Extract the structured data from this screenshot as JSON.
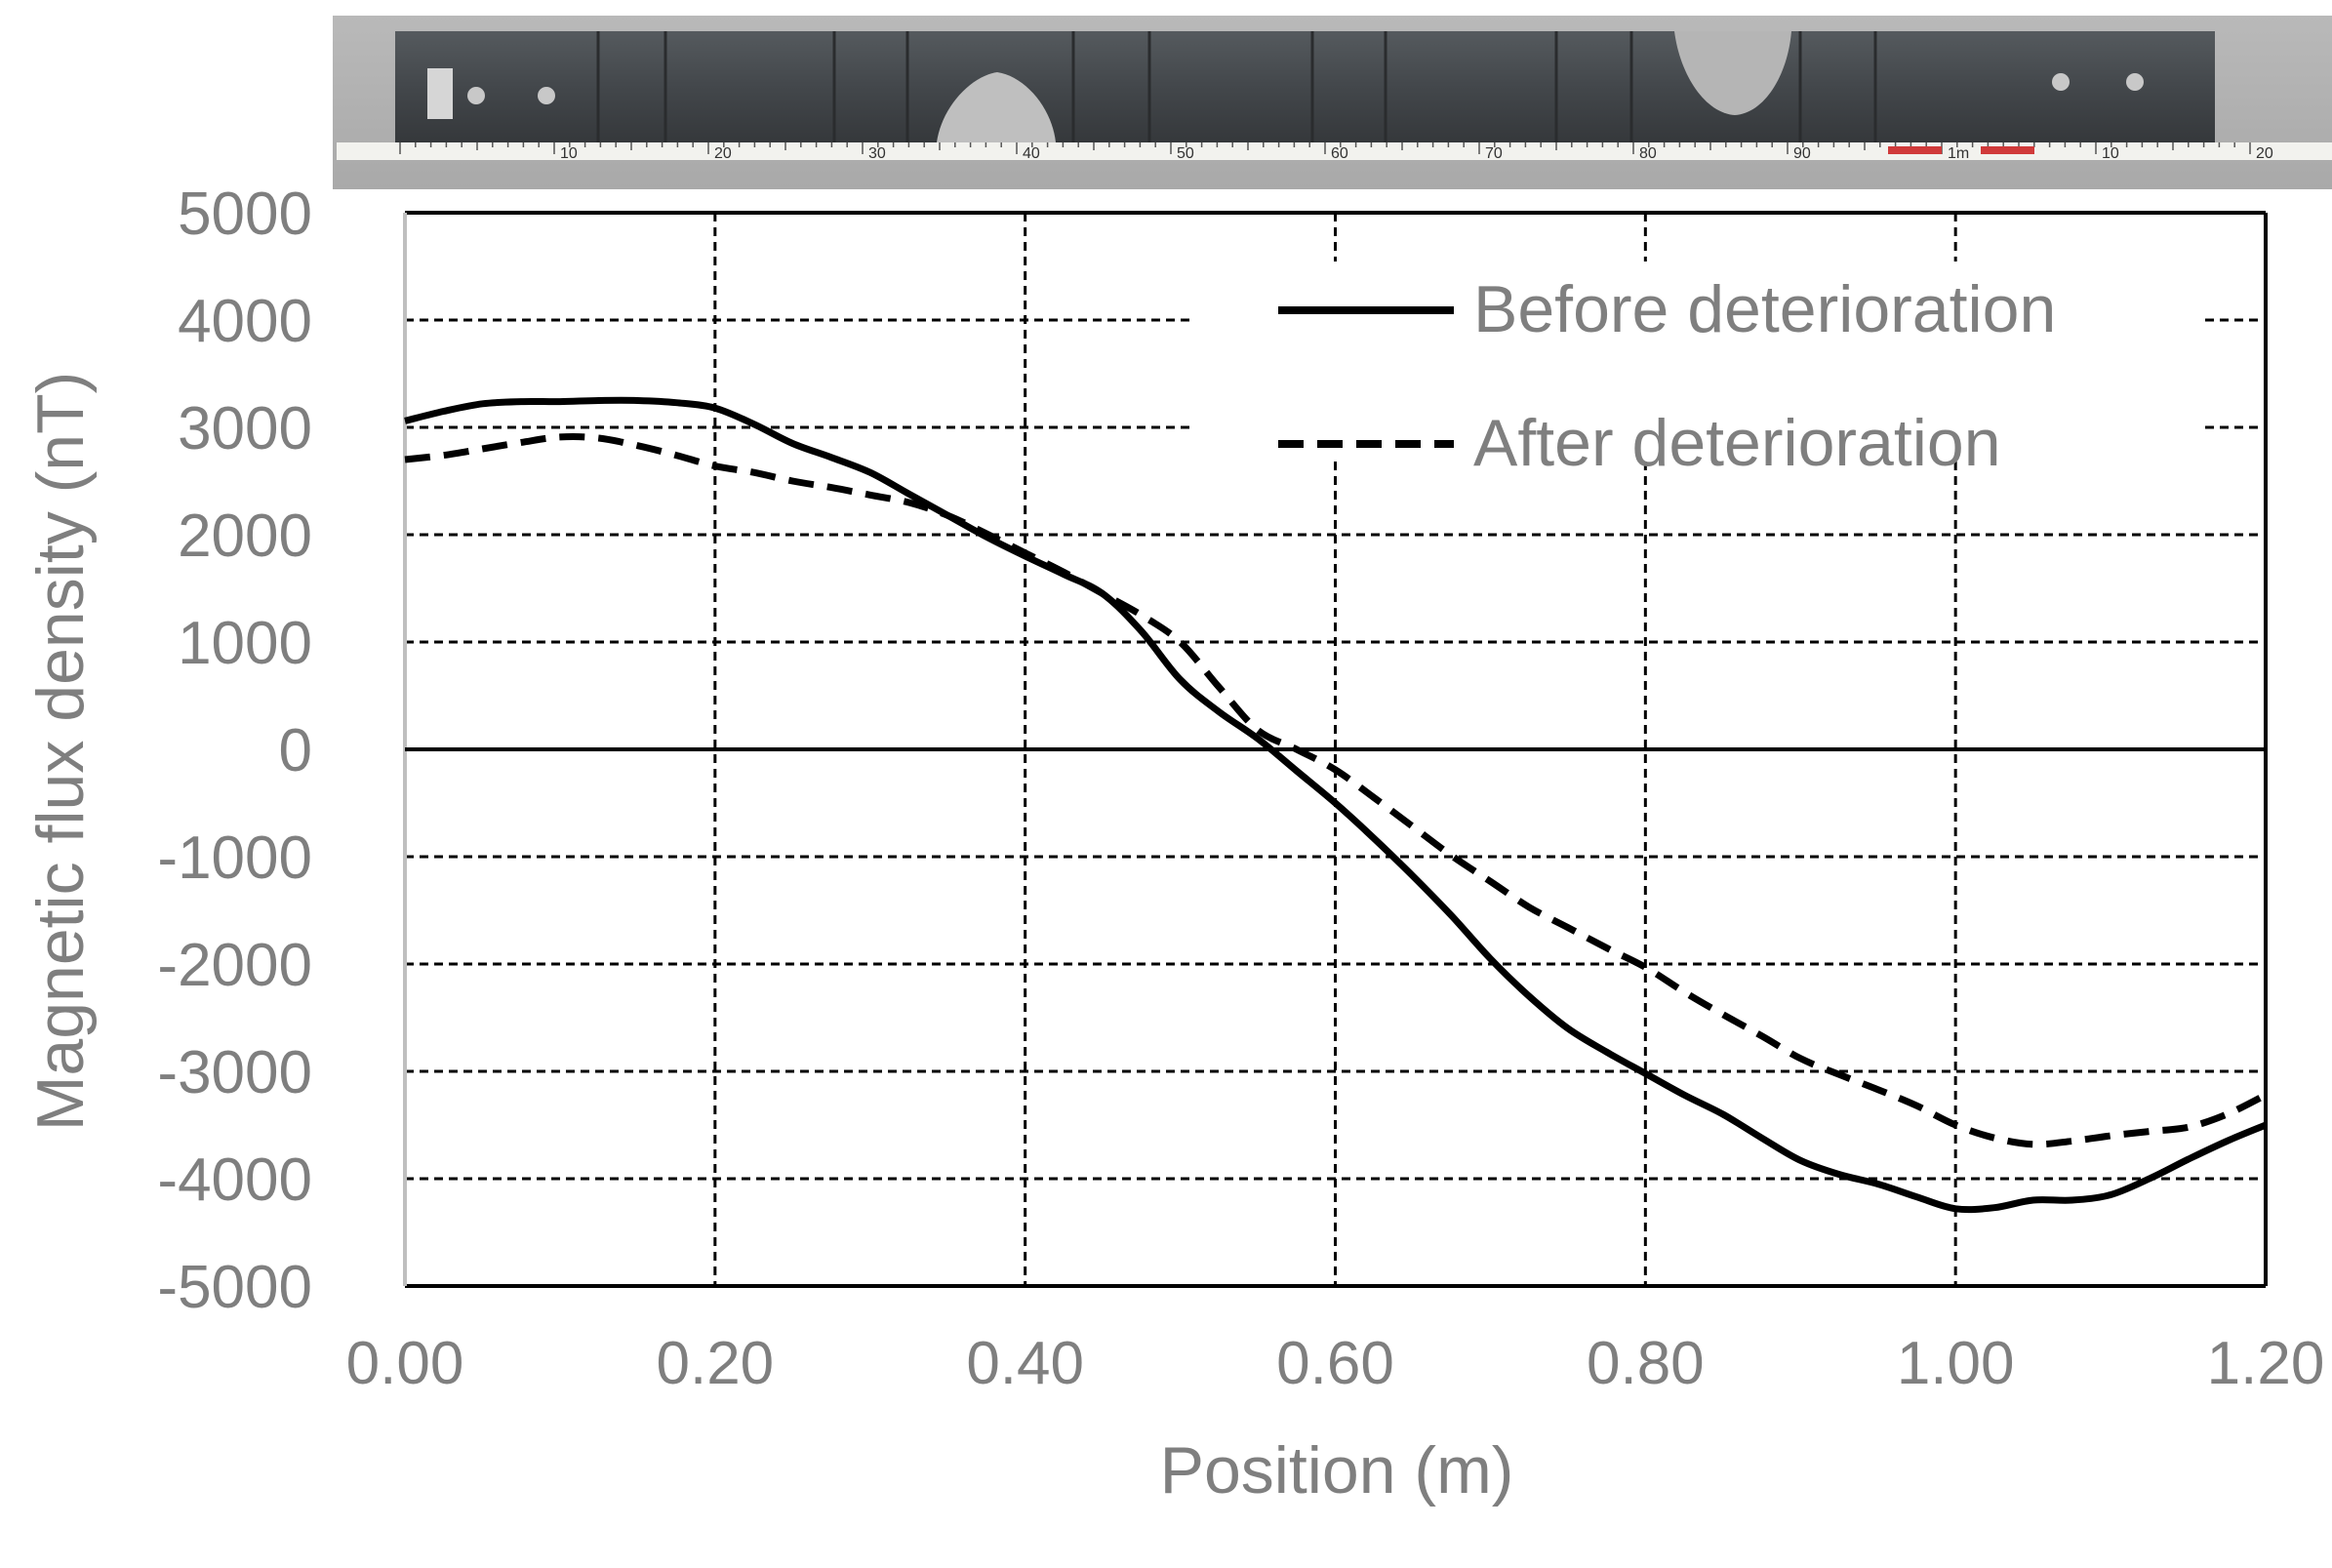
{
  "photo": {
    "description_icon": "steel-plate-specimen-photo",
    "ruler_labels": [
      "10",
      "20",
      "30",
      "40",
      "50",
      "60",
      "70",
      "80",
      "90",
      "1m",
      "10",
      "20"
    ]
  },
  "chart_data": {
    "type": "line",
    "title": "",
    "xlabel": "Position (m)",
    "ylabel": "Magnetic flux density (nT)",
    "xlim": [
      0.0,
      1.2
    ],
    "ylim": [
      -5000,
      5000
    ],
    "x_ticks": [
      0.0,
      0.2,
      0.4,
      0.6,
      0.8,
      1.0,
      1.2
    ],
    "x_tick_labels": [
      "0.00",
      "0.20",
      "0.40",
      "0.60",
      "0.80",
      "1.00",
      "1.20"
    ],
    "y_ticks": [
      5000,
      4000,
      3000,
      2000,
      1000,
      0,
      -1000,
      -2000,
      -3000,
      -4000,
      -5000
    ],
    "y_tick_labels": [
      "5000",
      "4000",
      "3000",
      "2000",
      "1000",
      "0",
      "-1000",
      "-2000",
      "-3000",
      "-4000",
      "-5000"
    ],
    "grid": true,
    "legend_position": "top-right",
    "series": [
      {
        "name": "Before deterioration",
        "style": "solid",
        "color": "#000000",
        "x": [
          0.0,
          0.025,
          0.05,
          0.075,
          0.1,
          0.125,
          0.15,
          0.175,
          0.2,
          0.225,
          0.25,
          0.275,
          0.3,
          0.325,
          0.35,
          0.375,
          0.4,
          0.425,
          0.45,
          0.475,
          0.5,
          0.525,
          0.55,
          0.575,
          0.6,
          0.625,
          0.65,
          0.675,
          0.7,
          0.725,
          0.75,
          0.775,
          0.8,
          0.825,
          0.85,
          0.875,
          0.9,
          0.925,
          0.95,
          0.975,
          1.0,
          1.025,
          1.05,
          1.075,
          1.1,
          1.125,
          1.15,
          1.175,
          1.2
        ],
        "y": [
          3060,
          3150,
          3220,
          3240,
          3240,
          3250,
          3250,
          3230,
          3180,
          3030,
          2850,
          2720,
          2580,
          2380,
          2180,
          1980,
          1800,
          1630,
          1450,
          1100,
          650,
          350,
          100,
          -200,
          -500,
          -830,
          -1180,
          -1550,
          -1950,
          -2300,
          -2600,
          -2820,
          -3020,
          -3220,
          -3400,
          -3620,
          -3830,
          -3960,
          -4050,
          -4170,
          -4280,
          -4270,
          -4200,
          -4200,
          -4150,
          -4000,
          -3820,
          -3650,
          -3500
        ]
      },
      {
        "name": "After deterioration",
        "style": "dashed",
        "color": "#000000",
        "x": [
          0.0,
          0.025,
          0.05,
          0.075,
          0.1,
          0.125,
          0.15,
          0.175,
          0.2,
          0.225,
          0.25,
          0.275,
          0.3,
          0.325,
          0.35,
          0.375,
          0.4,
          0.425,
          0.45,
          0.475,
          0.5,
          0.525,
          0.55,
          0.575,
          0.6,
          0.625,
          0.65,
          0.675,
          0.7,
          0.725,
          0.75,
          0.775,
          0.8,
          0.825,
          0.85,
          0.875,
          0.9,
          0.925,
          0.95,
          0.975,
          1.0,
          1.025,
          1.05,
          1.075,
          1.1,
          1.125,
          1.15,
          1.175,
          1.2
        ],
        "y": [
          2700,
          2740,
          2800,
          2860,
          2910,
          2900,
          2830,
          2740,
          2640,
          2580,
          2500,
          2440,
          2370,
          2300,
          2180,
          2010,
          1830,
          1650,
          1450,
          1250,
          1000,
          580,
          180,
          0,
          -190,
          -450,
          -720,
          -990,
          -1230,
          -1470,
          -1660,
          -1850,
          -2030,
          -2260,
          -2470,
          -2670,
          -2880,
          -3030,
          -3170,
          -3320,
          -3500,
          -3620,
          -3680,
          -3650,
          -3600,
          -3560,
          -3520,
          -3400,
          -3220
        ]
      }
    ]
  }
}
